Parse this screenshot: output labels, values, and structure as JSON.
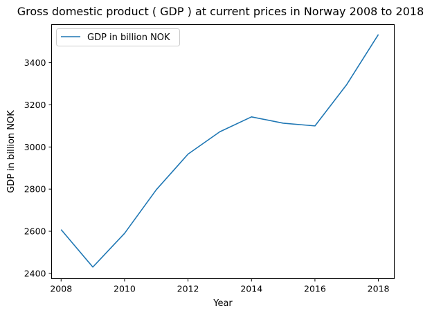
{
  "chart_data": {
    "type": "line",
    "title": "Gross domestic product ( GDP ) at current prices in Norway 2008 to 2018",
    "xlabel": "Year",
    "ylabel": "GDP in billion NOK",
    "x": [
      2008,
      2009,
      2010,
      2011,
      2012,
      2013,
      2014,
      2015,
      2016,
      2017,
      2018
    ],
    "series": [
      {
        "name": "GDP in billion NOK",
        "color": "#1f77b4",
        "values": [
          2608,
          2430,
          2590,
          2797,
          2966,
          3072,
          3143,
          3113,
          3100,
          3296,
          3534
        ]
      }
    ],
    "xlim": [
      2007.7,
      2018.5
    ],
    "ylim": [
      2375,
      3581
    ],
    "xticks": [
      2008,
      2010,
      2012,
      2014,
      2016,
      2018
    ],
    "yticks": [
      2400,
      2600,
      2800,
      3000,
      3200,
      3400
    ],
    "grid": false,
    "legend_position": "upper-left"
  }
}
